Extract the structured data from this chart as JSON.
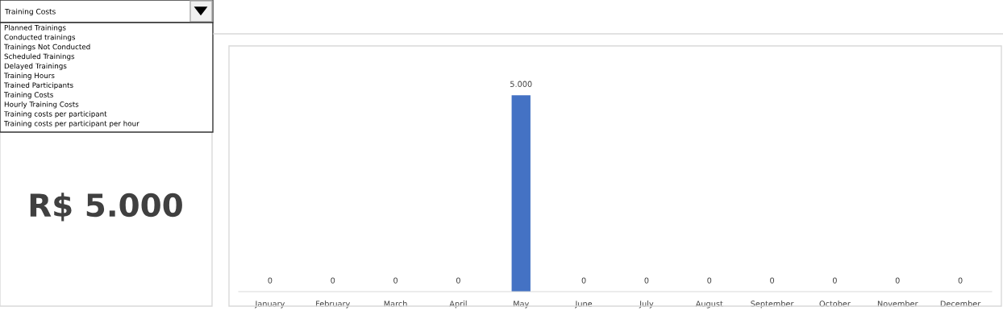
{
  "chart_data": [
    {
      "type": "other",
      "title": "Training Costs",
      "annotations": [
        "Planned Trainings",
        "Conducted trainings",
        "Trainings Not Conducted",
        "Scheduled Trainings",
        "Delayed Trainings",
        "Training Hours",
        "Trained Participants",
        "Training Costs",
        "Hourly Training Costs",
        "Training costs per participant",
        "Training costs per participant per hour"
      ],
      "subtitle": "R$ 5.000"
    },
    {
      "type": "bar",
      "categories": [
        "January",
        "February",
        "March",
        "April",
        "May",
        "June",
        "July",
        "August",
        "September",
        "October",
        "November",
        "December"
      ],
      "values": [
        0,
        0,
        0,
        0,
        5000,
        0,
        0,
        0,
        0,
        0,
        0,
        0
      ],
      "value_labels": [
        "0",
        "0",
        "0",
        "0",
        "5.000",
        "0",
        "0",
        "0",
        "0",
        "0",
        "0",
        "0"
      ],
      "color": "#4472c4",
      "grid": false,
      "legend": false,
      "tick_labels": "x"
    }
  ]
}
